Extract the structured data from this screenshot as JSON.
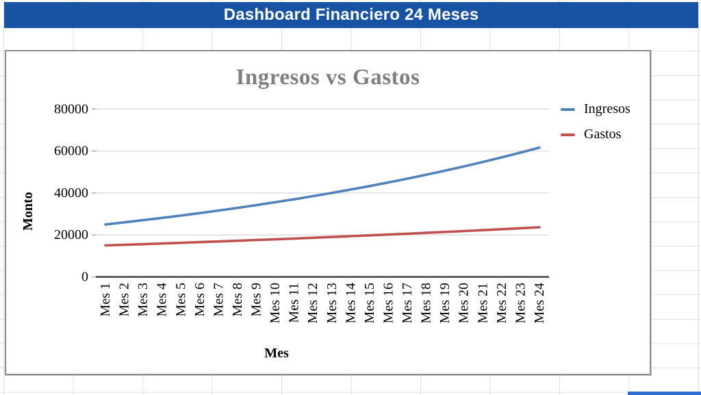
{
  "app": {
    "banner_title": "Dashboard Financiero 24 Meses",
    "banner_color": "#1853A3",
    "bottom_bar_color": "#2D6FD2"
  },
  "chart_data": {
    "type": "line",
    "title": "Ingresos vs Gastos",
    "xlabel": "Mes",
    "ylabel": "Monto",
    "ylim": [
      0,
      80000
    ],
    "yticks": [
      0,
      20000,
      40000,
      60000,
      80000
    ],
    "grid": true,
    "legend_position": "right",
    "title_color": "#7f7f7f",
    "categories": [
      "Mes 1",
      "Mes 2",
      "Mes 3",
      "Mes 4",
      "Mes 5",
      "Mes 6",
      "Mes 7",
      "Mes 8",
      "Mes 9",
      "Mes 10",
      "Mes 11",
      "Mes 12",
      "Mes 13",
      "Mes 14",
      "Mes 15",
      "Mes 16",
      "Mes 17",
      "Mes 18",
      "Mes 19",
      "Mes 20",
      "Mes 21",
      "Mes 22",
      "Mes 23",
      "Mes 24"
    ],
    "series": [
      {
        "name": "Ingresos",
        "color": "#4F81BD",
        "values": [
          25000,
          26000,
          27040,
          28122,
          29246,
          30416,
          31633,
          32898,
          34214,
          35583,
          37006,
          38486,
          40026,
          41627,
          43292,
          45024,
          46825,
          48698,
          50645,
          52671,
          54778,
          56969,
          59248,
          61618
        ]
      },
      {
        "name": "Gastos",
        "color": "#C0504D",
        "values": [
          15000,
          15300,
          15606,
          15918,
          16236,
          16561,
          16892,
          17230,
          17575,
          17926,
          18285,
          18651,
          19024,
          19404,
          19792,
          20188,
          20592,
          21004,
          21424,
          21852,
          22289,
          22735,
          23190,
          23654
        ]
      }
    ]
  }
}
